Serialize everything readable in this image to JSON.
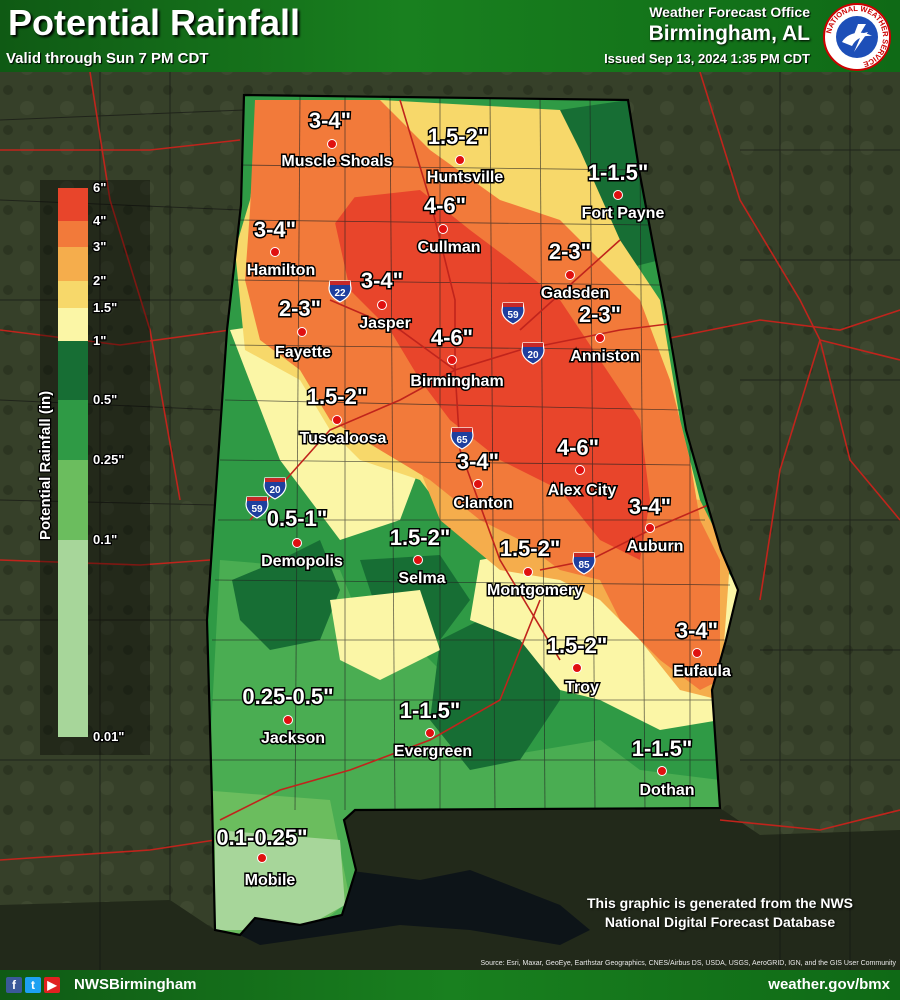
{
  "header": {
    "title": "Potential Rainfall",
    "valid": "Valid through Sun 7 PM CDT",
    "office": "Weather Forecast Office",
    "city": "Birmingham, AL",
    "issued": "Issued Sep 13, 2024 1:35 PM CDT",
    "logo_text": "NATIONAL WEATHER SERVICE"
  },
  "legend": {
    "title": "Potential Rainfall (in)",
    "ticks": [
      "6\"",
      "4\"",
      "3\"",
      "2\"",
      "1.5\"",
      "1\"",
      "0.5\"",
      "0.25\"",
      "0.1\"",
      "0.01\""
    ],
    "colors": [
      "#e8452b",
      "#f27a3a",
      "#f5ad4c",
      "#f7d86a",
      "#fbf6a6",
      "#176e34",
      "#2f9a45",
      "#6bbd5e",
      "#a7d69a",
      "#d2ecc9"
    ]
  },
  "map": {
    "locations": [
      {
        "name": "Muscle Shoals",
        "amount": "3-4\""
      },
      {
        "name": "Huntsville",
        "amount": "1.5-2\""
      },
      {
        "name": "Fort Payne",
        "amount": "1-1.5\""
      },
      {
        "name": "Hamilton",
        "amount": "3-4\""
      },
      {
        "name": "Cullman",
        "amount": "4-6\""
      },
      {
        "name": "Gadsden",
        "amount": "2-3\""
      },
      {
        "name": "Jasper",
        "amount": "3-4\""
      },
      {
        "name": "Fayette",
        "amount": "2-3\""
      },
      {
        "name": "Anniston",
        "amount": "2-3\""
      },
      {
        "name": "Birmingham",
        "amount": "4-6\""
      },
      {
        "name": "Tuscaloosa",
        "amount": "1.5-2\""
      },
      {
        "name": "Clanton",
        "amount": "3-4\""
      },
      {
        "name": "Alex City",
        "amount": "4-6\""
      },
      {
        "name": "Auburn",
        "amount": "3-4\""
      },
      {
        "name": "Demopolis",
        "amount": "0.5-1\""
      },
      {
        "name": "Selma",
        "amount": "1.5-2\""
      },
      {
        "name": "Montgomery",
        "amount": "1.5-2\""
      },
      {
        "name": "Eufaula",
        "amount": "3-4\""
      },
      {
        "name": "Troy",
        "amount": "1.5-2\""
      },
      {
        "name": "Jackson",
        "amount": "0.25-0.5\""
      },
      {
        "name": "Evergreen",
        "amount": "1-1.5\""
      },
      {
        "name": "Dothan",
        "amount": "1-1.5\""
      },
      {
        "name": "Mobile",
        "amount": "0.1-0.25\""
      }
    ],
    "interstates": [
      "22",
      "59",
      "20",
      "65",
      "20",
      "59",
      "85"
    ]
  },
  "disclaimer": "This graphic is generated from the NWS National Digital Forecast Database",
  "source": "Source: Esri, Maxar, GeoEye, Earthstar Geographics, CNES/Airbus DS, USDA, USGS, AeroGRID, IGN, and the GIS User Community",
  "footer": {
    "handle": "NWSBirmingham",
    "website": "weather.gov/bmx"
  }
}
